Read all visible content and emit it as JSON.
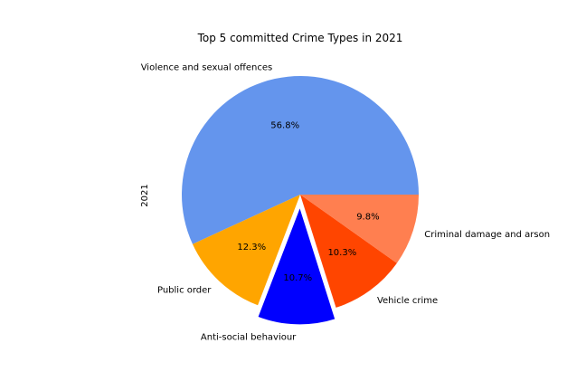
{
  "chart_data": {
    "type": "pie",
    "title": "Top 5 committed Crime Types in 2021",
    "ylabel": "2021",
    "slices": [
      {
        "label": "Violence and sexual offences",
        "value": 56.8,
        "pct_label": "56.8%",
        "color": "#6495ED",
        "exploded": false
      },
      {
        "label": "Public order",
        "value": 12.3,
        "pct_label": "12.3%",
        "color": "#FFA500",
        "exploded": false
      },
      {
        "label": "Anti-social behaviour",
        "value": 10.7,
        "pct_label": "10.7%",
        "color": "#0000FF",
        "exploded": true
      },
      {
        "label": "Vehicle crime",
        "value": 10.3,
        "pct_label": "10.3%",
        "color": "#FF4500",
        "exploded": false
      },
      {
        "label": "Criminal damage and arson",
        "value": 9.8,
        "pct_label": "9.8%",
        "color": "#FF7F50",
        "exploded": false
      }
    ]
  }
}
